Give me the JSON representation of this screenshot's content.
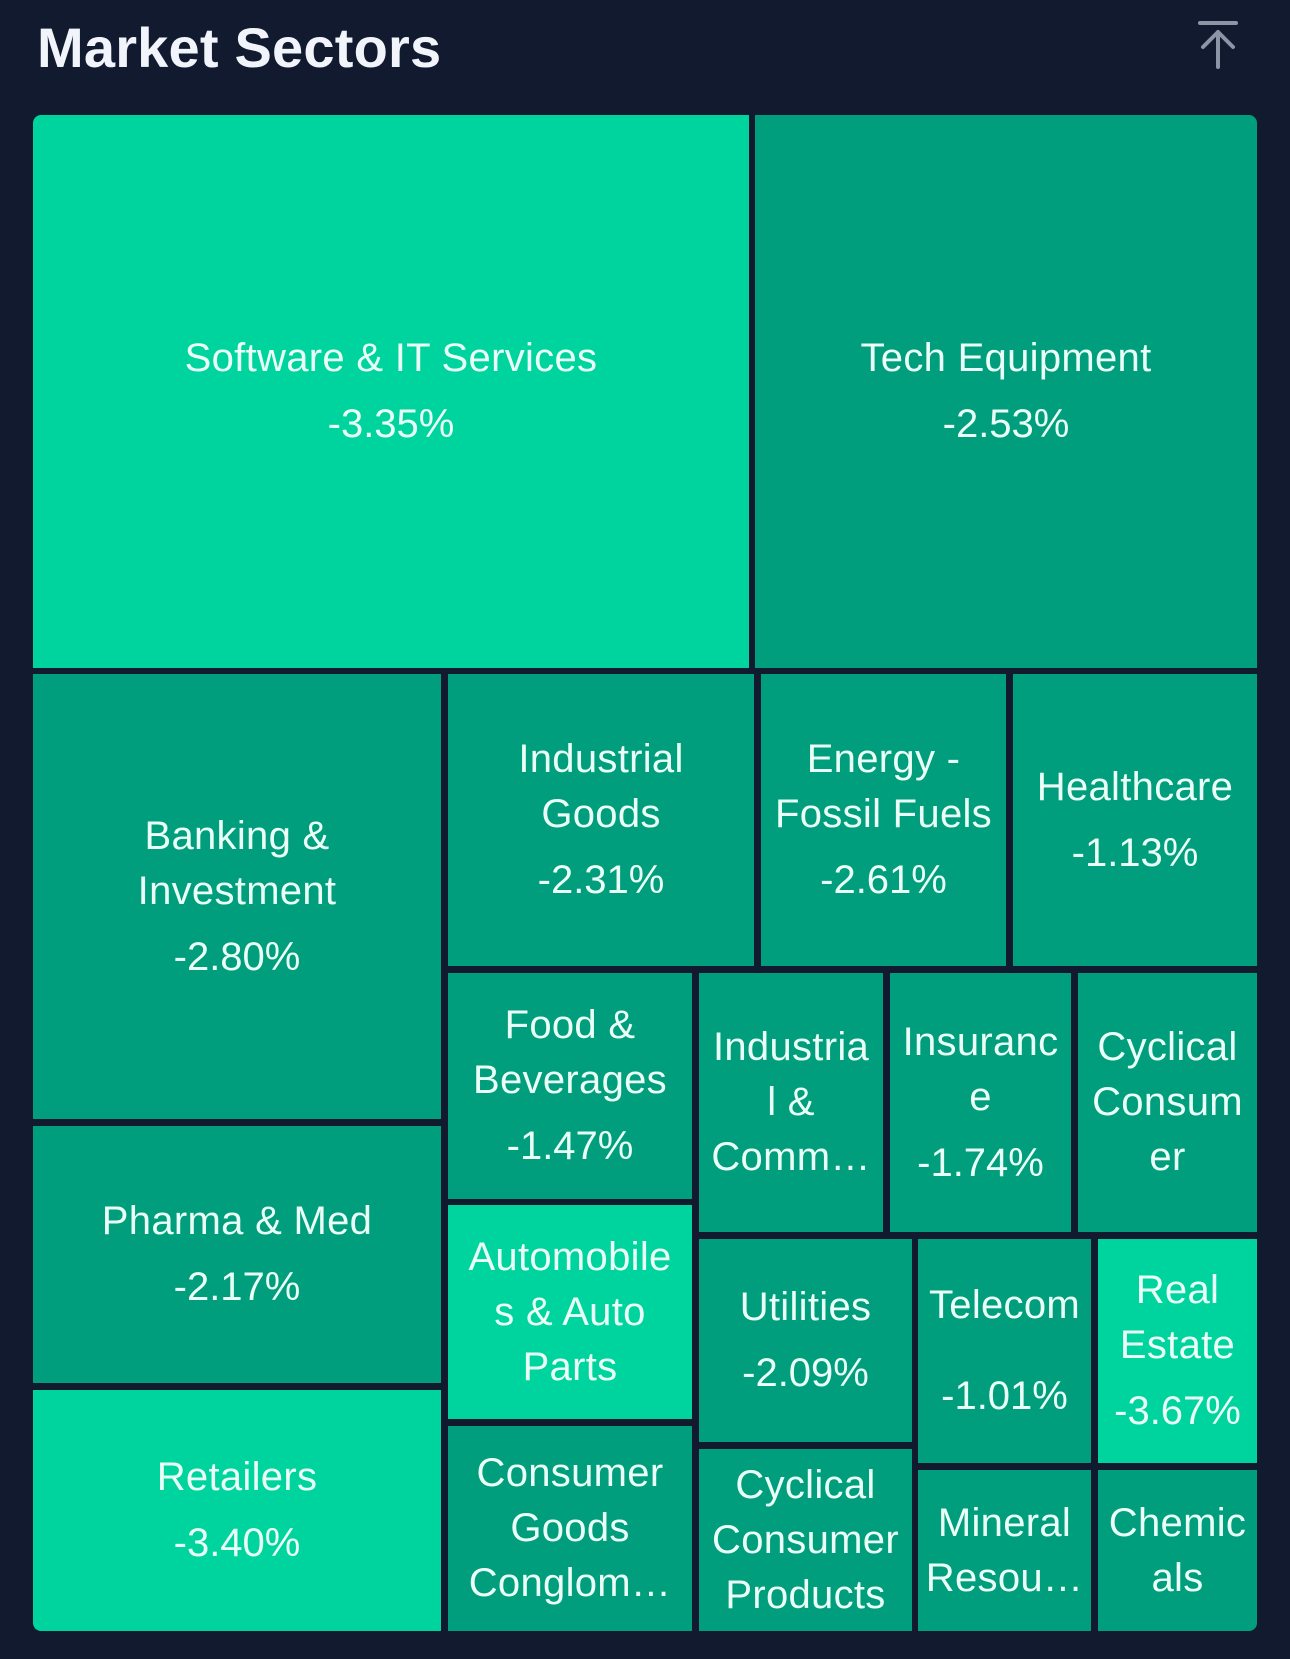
{
  "header": {
    "title": "Market Sectors",
    "collapse_icon": "arrow-up-to-top-icon"
  },
  "colors": {
    "background": "#111a2f",
    "tile_dark": "#009e7d",
    "tile_light": "#00d49e",
    "text": "#eafff6"
  },
  "sectors": [
    {
      "name": "Software & IT Services",
      "change": "-3.35%"
    },
    {
      "name": "Tech Equipment",
      "change": "-2.53%"
    },
    {
      "name": "Banking &\nInvestment",
      "change": "-2.80%"
    },
    {
      "name": "Industrial\nGoods",
      "change": "-2.31%"
    },
    {
      "name": "Energy -\nFossil Fuels",
      "change": "-2.61%"
    },
    {
      "name": "Healthcare",
      "change": "-1.13%"
    },
    {
      "name": "Food &\nBeverages",
      "change": "-1.47%"
    },
    {
      "name": "Industria\nl &\nComm…",
      "change": ""
    },
    {
      "name": "Insuranc\ne",
      "change": "-1.74%"
    },
    {
      "name": "Cyclical\nConsum\ner",
      "change": ""
    },
    {
      "name": "Pharma & Med",
      "change": "-2.17%"
    },
    {
      "name": "Automobile\ns & Auto\nParts",
      "change": ""
    },
    {
      "name": "Utilities",
      "change": "-2.09%"
    },
    {
      "name": "Telecom",
      "change": "-1.01%"
    },
    {
      "name": "Real\nEstate",
      "change": "-3.67%"
    },
    {
      "name": "Retailers",
      "change": "-3.40%"
    },
    {
      "name": "Consumer\nGoods\nConglom…",
      "change": ""
    },
    {
      "name": "Cyclical\nConsumer\nProducts",
      "change": ""
    },
    {
      "name": "Mineral\nResou…",
      "change": ""
    },
    {
      "name": "Chemic\nals",
      "change": ""
    }
  ]
}
